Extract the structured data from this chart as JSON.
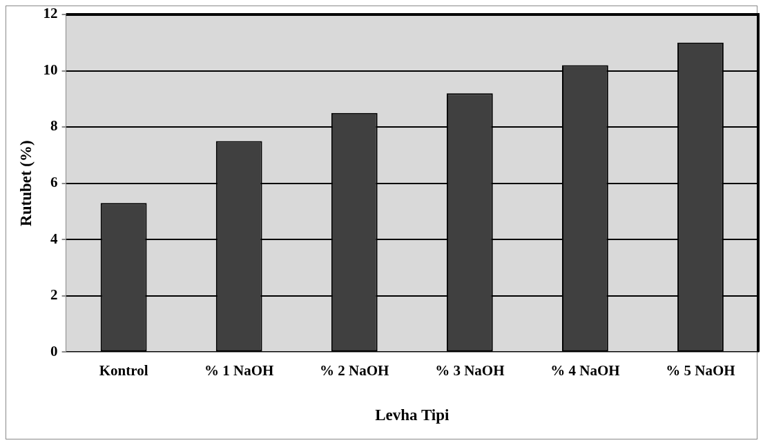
{
  "chart_data": {
    "type": "bar",
    "xlabel": "Levha Tipi",
    "ylabel": "Rutubet (%)",
    "categories": [
      "Kontrol",
      "% 1 NaOH",
      "% 2 NaOH",
      "% 3 NaOH",
      "% 4 NaOH",
      "% 5 NaOH"
    ],
    "values": [
      5.3,
      7.5,
      8.5,
      9.2,
      10.2,
      11.0
    ],
    "color": "#404040",
    "ylim": [
      0,
      12
    ],
    "yticks": [
      0,
      2,
      4,
      6,
      8,
      10,
      12
    ],
    "grid": "y",
    "legend": false
  }
}
